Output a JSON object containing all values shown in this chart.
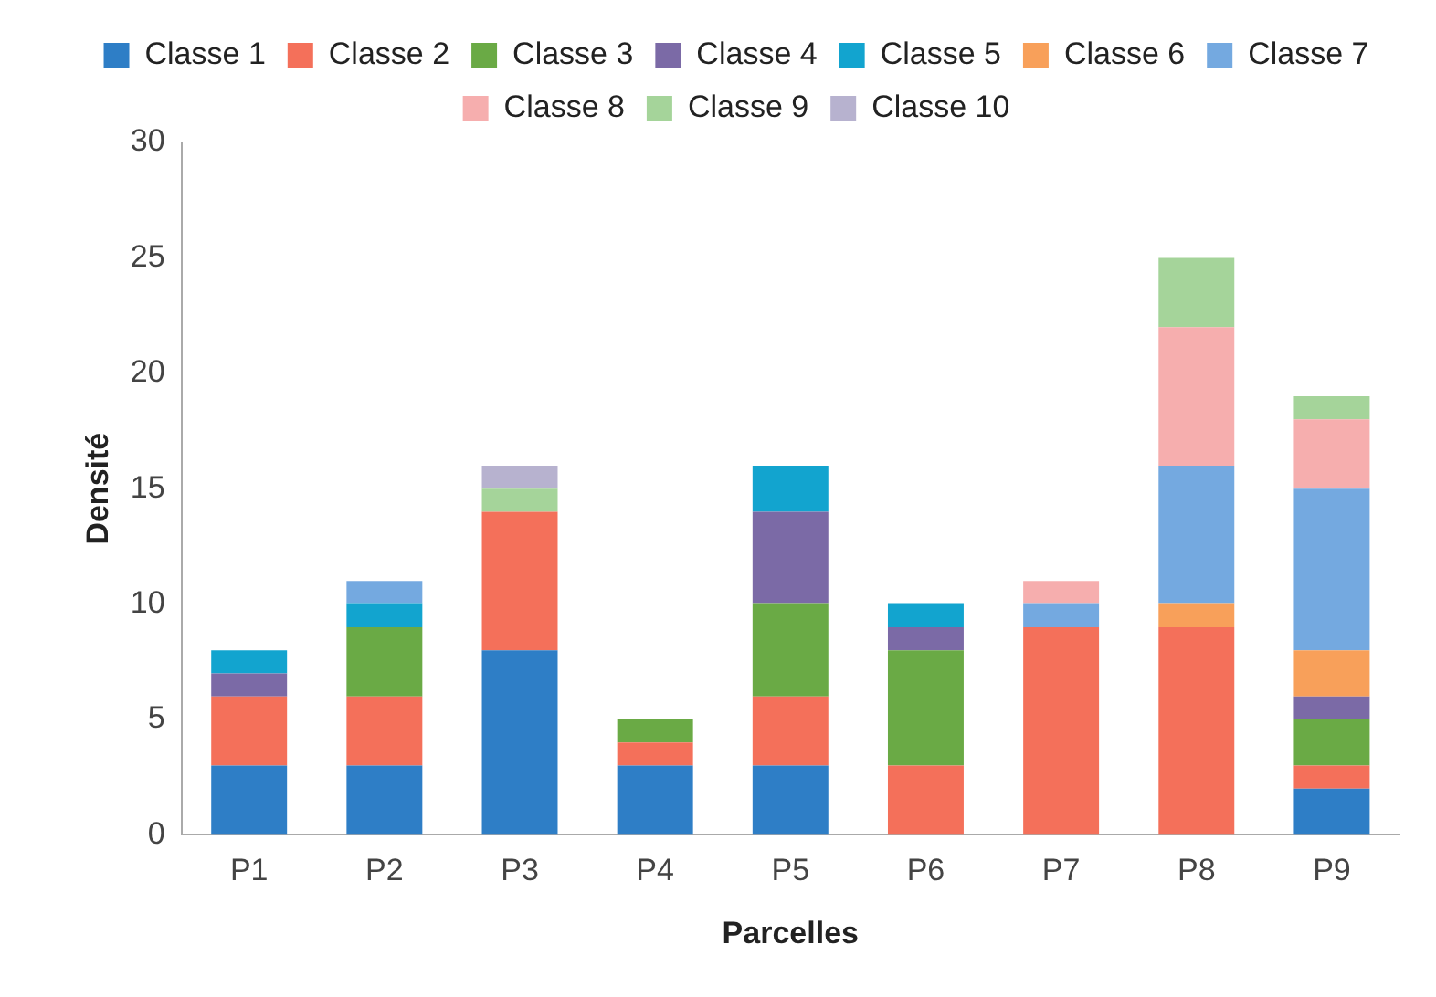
{
  "chart_data": {
    "type": "bar",
    "stacked": true,
    "xlabel": "Parcelles",
    "ylabel": "Densité",
    "categories": [
      "P1",
      "P2",
      "P3",
      "P4",
      "P5",
      "P6",
      "P7",
      "P8",
      "P9"
    ],
    "ylim": [
      0,
      30
    ],
    "yticks": [
      0,
      5,
      10,
      15,
      20,
      25,
      30
    ],
    "grid": false,
    "legend": "top",
    "series": [
      {
        "name": "Classe 1",
        "color": "#2e7ec6",
        "values": [
          3,
          3,
          8,
          3,
          3,
          0,
          0,
          0,
          2
        ]
      },
      {
        "name": "Classe 2",
        "color": "#f4705a",
        "values": [
          3,
          3,
          6,
          1,
          3,
          3,
          9,
          9,
          1
        ]
      },
      {
        "name": "Classe 3",
        "color": "#6aaa45",
        "values": [
          0,
          3,
          0,
          1,
          4,
          5,
          0,
          0,
          2
        ]
      },
      {
        "name": "Classe 4",
        "color": "#7b6aa6",
        "values": [
          1,
          0,
          0,
          0,
          4,
          1,
          0,
          0,
          1
        ]
      },
      {
        "name": "Classe 5",
        "color": "#12a4cf",
        "values": [
          1,
          1,
          0,
          0,
          2,
          1,
          0,
          0,
          0
        ]
      },
      {
        "name": "Classe 6",
        "color": "#f8a05a",
        "values": [
          0,
          0,
          0,
          0,
          0,
          0,
          0,
          1,
          2
        ]
      },
      {
        "name": "Classe 7",
        "color": "#74a9e0",
        "values": [
          0,
          1,
          0,
          0,
          0,
          0,
          1,
          6,
          7
        ]
      },
      {
        "name": "Classe 8",
        "color": "#f6aeae",
        "values": [
          0,
          0,
          0,
          0,
          0,
          0,
          1,
          6,
          3
        ]
      },
      {
        "name": "Classe 9",
        "color": "#a5d49a",
        "values": [
          0,
          0,
          1,
          0,
          0,
          0,
          0,
          3,
          1
        ]
      },
      {
        "name": "Classe 10",
        "color": "#b7b2cf",
        "values": [
          0,
          0,
          1,
          0,
          0,
          0,
          0,
          0,
          0
        ]
      }
    ]
  }
}
